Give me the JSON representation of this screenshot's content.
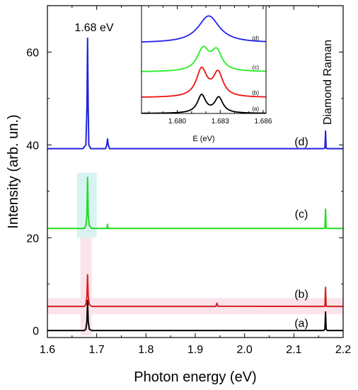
{
  "chart_data": [
    {
      "type": "line",
      "xlabel": "Photon energy (eV)",
      "ylabel": "Intensity (arb. un.)",
      "xlim": [
        1.6,
        2.2
      ],
      "ylim": [
        -1.5,
        70
      ],
      "xticks": [
        1.6,
        1.7,
        1.8,
        1.9,
        2.0,
        2.1,
        2.2
      ],
      "xtick_labels": [
        "1.6",
        "1.7",
        "1.8",
        "1.9",
        "2.0",
        "2.1",
        "2.2"
      ],
      "yticks": [
        0,
        20,
        40,
        60
      ],
      "ytick_labels": [
        "0",
        "20",
        "40",
        "60"
      ],
      "grid": false,
      "series": [
        {
          "name": "(a)",
          "color": "#000000",
          "baseline": 0,
          "x": [
            1.6,
            1.675,
            1.678,
            1.6802,
            1.6815,
            1.6828,
            1.685,
            1.69,
            2.16,
            2.163,
            2.1643,
            2.1655,
            2.168,
            2.2
          ],
          "y": [
            0,
            0,
            0.3,
            2.0,
            6.5,
            2.0,
            0.3,
            0,
            0,
            0.3,
            4.0,
            0.3,
            0,
            0
          ]
        },
        {
          "name": "(b)",
          "color": "#d62020",
          "baseline": 5.2,
          "x": [
            1.6,
            1.675,
            1.678,
            1.6802,
            1.6815,
            1.6828,
            1.685,
            1.69,
            1.94,
            1.942,
            1.944,
            1.946,
            2.16,
            2.163,
            2.1643,
            2.1655,
            2.168,
            2.2
          ],
          "y": [
            5.2,
            5.2,
            5.6,
            7.5,
            12.0,
            7.5,
            5.6,
            5.2,
            5.2,
            5.25,
            5.9,
            5.25,
            5.2,
            5.25,
            9.3,
            5.25,
            5.2,
            5.2
          ]
        },
        {
          "name": "(c)",
          "color": "#22dd22",
          "baseline": 22.0,
          "x": [
            1.6,
            1.675,
            1.678,
            1.6802,
            1.6815,
            1.6828,
            1.685,
            1.69,
            1.7205,
            1.722,
            1.7235,
            2.16,
            2.163,
            2.1643,
            2.1655,
            2.168,
            2.2
          ],
          "y": [
            22.0,
            22.0,
            22.6,
            25.0,
            33.0,
            25.0,
            22.6,
            22.0,
            22.0,
            22.9,
            22.0,
            22.0,
            22.1,
            26.2,
            22.1,
            22.0,
            22.0
          ]
        },
        {
          "name": "(d)",
          "color": "#2222dd",
          "baseline": 39.2,
          "x": [
            1.6,
            1.672,
            1.678,
            1.6802,
            1.6815,
            1.6828,
            1.684,
            1.688,
            1.718,
            1.7205,
            1.722,
            1.7235,
            1.726,
            2.16,
            2.163,
            2.1643,
            2.1655,
            2.168,
            2.2
          ],
          "y": [
            39.2,
            39.2,
            40.0,
            48.0,
            63.0,
            48.0,
            40.0,
            39.2,
            39.2,
            40.0,
            41.3,
            40.0,
            39.2,
            39.2,
            39.3,
            43.0,
            39.3,
            39.2,
            39.2
          ]
        }
      ],
      "annotations": {
        "peak_label": "1.68 eV",
        "raman_label": "Diamond Raman",
        "series_labels": [
          "(a)",
          "(b)",
          "(c)",
          "(d)"
        ]
      },
      "background_bands": [
        "#d9f2f2",
        "#fbe3ea"
      ]
    },
    {
      "type": "line",
      "inset": true,
      "xlabel": "E (eV)",
      "ylabel": "",
      "xlim": [
        1.6775,
        1.6862
      ],
      "ylim": [
        0,
        4.2
      ],
      "xticks": [
        1.68,
        1.683,
        1.686
      ],
      "xtick_labels": [
        "1.680",
        "1.683",
        "1.686"
      ],
      "minor_xticks": [
        1.678,
        1.679,
        1.681,
        1.682,
        1.684,
        1.685
      ],
      "grid": false,
      "series": [
        {
          "name": "(a)",
          "color": "#000000",
          "baseline": 0.0,
          "peaks": [
            {
              "center": 1.6817,
              "amplitude": 0.7,
              "width": 0.00035
            },
            {
              "center": 1.6829,
              "amplitude": 0.6,
              "width": 0.00035
            }
          ]
        },
        {
          "name": "(b)",
          "color": "#ee1111",
          "baseline": 0.62,
          "peaks": [
            {
              "center": 1.6817,
              "amplitude": 1.07,
              "width": 0.00045
            },
            {
              "center": 1.68285,
              "amplitude": 0.92,
              "width": 0.00042
            }
          ]
        },
        {
          "name": "(c)",
          "color": "#22ee22",
          "baseline": 1.62,
          "peaks": [
            {
              "center": 1.6818,
              "amplitude": 0.85,
              "width": 0.0005
            },
            {
              "center": 1.68275,
              "amplitude": 0.75,
              "width": 0.00045
            }
          ]
        },
        {
          "name": "(d)",
          "color": "#2222ee",
          "baseline": 2.75,
          "peaks": [
            {
              "center": 1.6822,
              "amplitude": 1.05,
              "width": 0.0009
            }
          ]
        }
      ]
    }
  ]
}
